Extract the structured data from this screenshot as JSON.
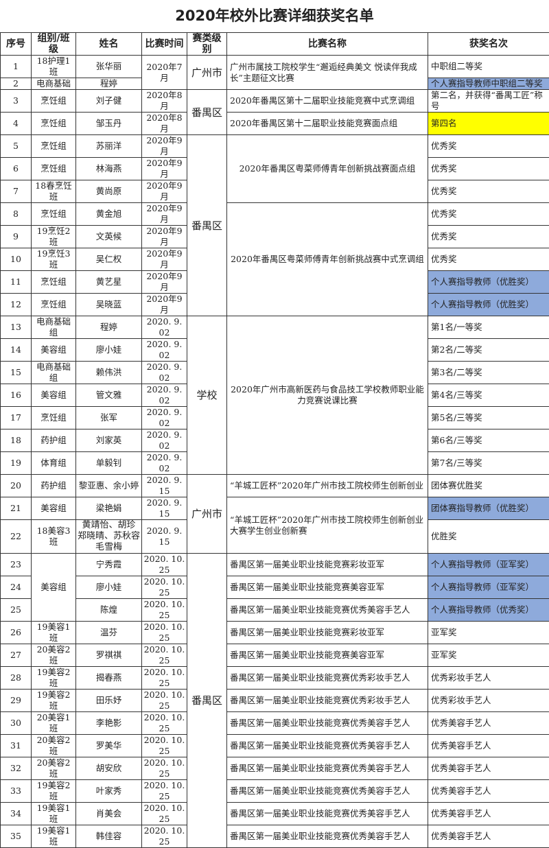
{
  "title": "2020年校外比赛详细获奖名单",
  "colors": {
    "highlight_blue": "#8eaadb",
    "highlight_yellow": "#ffff00"
  },
  "headers": [
    "序号",
    "组别/班级",
    "姓名",
    "比赛时间",
    "赛类级别",
    "比赛名称",
    "获奖名次"
  ],
  "rows": [
    {
      "no": "1",
      "group": "18护理1班",
      "name": "张华丽",
      "time": "2020年7月",
      "level": "广州市",
      "competition": "广州市属技工院校学生“邂逅经典美文 悦读伴我成长”主题征文比赛",
      "award": "中职组二等奖"
    },
    {
      "no": "2",
      "group": "电商基础",
      "name": "程婷",
      "time": "2020年7月",
      "level": "广州市",
      "competition": "广州市属技工院校学生“邂逅经典美文 悦读伴我成长”主题征文比赛",
      "award": "个人赛指导教师中职组二等奖",
      "highlight": "blue"
    },
    {
      "no": "3",
      "group": "烹饪组",
      "name": "刘子健",
      "time": "2020年8月",
      "level": "番禺区",
      "competition": "2020年番禺区第十二届职业技能竞赛中式烹调组",
      "award": "第二名，并获得“番禺工匠”称号"
    },
    {
      "no": "4",
      "group": "烹饪组",
      "name": "邹玉丹",
      "time": "2020年8月",
      "level": "番禺区",
      "competition": "2020年番禺区第十二届职业技能竞赛面点组",
      "award": "第四名",
      "highlight": "yellow"
    },
    {
      "no": "5",
      "group": "烹饪组",
      "name": "苏丽洋",
      "time": "2020年9月",
      "level": "番禺区",
      "competition": "2020年番禺区粤菜师傅青年创新挑战赛面点组",
      "award": "优秀奖"
    },
    {
      "no": "6",
      "group": "烹饪组",
      "name": "林海燕",
      "time": "2020年9月",
      "level": "番禺区",
      "competition": "2020年番禺区粤菜师傅青年创新挑战赛面点组",
      "award": "优秀奖"
    },
    {
      "no": "7",
      "group": "18春烹饪班",
      "name": "黄尚原",
      "time": "2020年9月",
      "level": "番禺区",
      "competition": "2020年番禺区粤菜师傅青年创新挑战赛面点组",
      "award": "优秀奖"
    },
    {
      "no": "8",
      "group": "烹饪组",
      "name": "黄金旭",
      "time": "2020年9月",
      "level": "番禺区",
      "competition": "2020年番禺区粤菜师傅青年创新挑战赛中式烹调组",
      "award": "优秀奖"
    },
    {
      "no": "9",
      "group": "19烹饪2班",
      "name": "文英候",
      "time": "2020年9月",
      "level": "番禺区",
      "competition": "2020年番禺区粤菜师傅青年创新挑战赛中式烹调组",
      "award": "优秀奖"
    },
    {
      "no": "10",
      "group": "19烹饪3班",
      "name": "吴仁权",
      "time": "2020年9月",
      "level": "番禺区",
      "competition": "2020年番禺区粤菜师傅青年创新挑战赛中式烹调组",
      "award": "优秀奖"
    },
    {
      "no": "11",
      "group": "烹饪组",
      "name": "黄艺星",
      "time": "2020年9月",
      "level": "番禺区",
      "competition": "2020年番禺区粤菜师傅青年创新挑战赛中式烹调组",
      "award": "个人赛指导教师（优胜奖）",
      "highlight": "blue"
    },
    {
      "no": "12",
      "group": "烹饪组",
      "name": "吴晓蓝",
      "time": "2020年9月",
      "level": "番禺区",
      "competition": "2020年番禺区粤菜师傅青年创新挑战赛中式烹调组",
      "award": "个人赛指导教师（优胜奖）",
      "highlight": "blue"
    },
    {
      "no": "13",
      "group": "电商基础组",
      "name": "程婷",
      "time": "2020. 9. 02",
      "level": "学校",
      "competition": "2020年广州市高新医药与食品技工学校教师职业能力竞赛说课比赛",
      "award": "第1名/一等奖"
    },
    {
      "no": "14",
      "group": "美容组",
      "name": "廖小娃",
      "time": "2020. 9. 02",
      "level": "学校",
      "competition": "2020年广州市高新医药与食品技工学校教师职业能力竞赛说课比赛",
      "award": "第2名/二等奖"
    },
    {
      "no": "15",
      "group": "电商基础组",
      "name": "赖伟洪",
      "time": "2020. 9. 02",
      "level": "学校",
      "competition": "2020年广州市高新医药与食品技工学校教师职业能力竞赛说课比赛",
      "award": "第3名/二等奖"
    },
    {
      "no": "16",
      "group": "美容组",
      "name": "管文雅",
      "time": "2020. 9. 02",
      "level": "学校",
      "competition": "2020年广州市高新医药与食品技工学校教师职业能力竞赛说课比赛",
      "award": "第4名/三等奖"
    },
    {
      "no": "17",
      "group": "烹饪组",
      "name": "张军",
      "time": "2020. 9. 02",
      "level": "学校",
      "competition": "2020年广州市高新医药与食品技工学校教师职业能力竞赛说课比赛",
      "award": "第5名/三等奖"
    },
    {
      "no": "18",
      "group": "药护组",
      "name": "刘家英",
      "time": "2020. 9. 02",
      "level": "学校",
      "competition": "2020年广州市高新医药与食品技工学校教师职业能力竞赛说课比赛",
      "award": "第6名/三等奖"
    },
    {
      "no": "19",
      "group": "体育组",
      "name": "单毅钊",
      "time": "2020. 9. 02",
      "level": "学校",
      "competition": "2020年广州市高新医药与食品技工学校教师职业能力竞赛说课比赛",
      "award": "第7名/三等奖"
    },
    {
      "no": "20",
      "group": "药护组",
      "name": "黎亚惠、余小婷",
      "time": "2020. 9. 15",
      "level": "广州市",
      "competition": "“羊城工匠杯”2020年广州市技工院校师生创新创业",
      "award": "团体赛优胜奖"
    },
    {
      "no": "21",
      "group": "美容组",
      "name": "梁艳娟",
      "time": "2020. 9. 15",
      "level": "广州市",
      "competition": "“羊城工匠杯”2020年广州市技工院校师生创新创业大赛学生创业创新赛",
      "award": "团体赛指导教师（优胜奖）",
      "highlight": "blue"
    },
    {
      "no": "22",
      "group": "18美容3班",
      "name": "黄靖怡、胡珍 郑晓晴、苏秋容 毛雪梅",
      "time": "2020. 9. 15",
      "level": "广州市",
      "competition": "“羊城工匠杯”2020年广州市技工院校师生创新创业大赛学生创业创新赛",
      "award": "优胜奖"
    },
    {
      "no": "23",
      "group": "美容组",
      "name": "宁秀霞",
      "time": "2020. 10. 25",
      "level": "番禺区",
      "competition": "番禺区第一届美业职业技能竞赛彩妆亚军",
      "award": "个人赛指导教师（亚军奖）",
      "highlight": "blue"
    },
    {
      "no": "24",
      "group": "美容组",
      "name": "廖小娃",
      "time": "2020. 10. 25",
      "level": "番禺区",
      "competition": "番禺区第一届美业职业技能竞赛美容亚军",
      "award": "个人赛指导教师（亚军奖）",
      "highlight": "blue"
    },
    {
      "no": "25",
      "group": "美容组",
      "name": "陈煌",
      "time": "2020. 10. 25",
      "level": "番禺区",
      "competition": "番禺区第一届美业职业技能竞赛优秀美容手艺人",
      "award": "个人赛指导教师（优秀奖）",
      "highlight": "blue"
    },
    {
      "no": "26",
      "group": "19美容1班",
      "name": "温芬",
      "time": "2020. 10. 25",
      "level": "番禺区",
      "competition": "番禺区第一届美业职业技能竞赛彩妆亚军",
      "award": "亚军奖"
    },
    {
      "no": "27",
      "group": "20美容2班",
      "name": "罗祺祺",
      "time": "2020. 10. 25",
      "level": "番禺区",
      "competition": "番禺区第一届美业职业技能竞赛美容亚军",
      "award": "亚军奖"
    },
    {
      "no": "28",
      "group": "19美容2班",
      "name": "揭春燕",
      "time": "2020. 10. 25",
      "level": "番禺区",
      "competition": "番禺区第一届美业职业技能竞赛优秀彩妆手艺人",
      "award": "优秀彩妆手艺人"
    },
    {
      "no": "29",
      "group": "19美容2班",
      "name": "田乐妤",
      "time": "2020. 10. 25",
      "level": "番禺区",
      "competition": "番禺区第一届美业职业技能竞赛优秀彩妆手艺人",
      "award": "优秀彩妆手艺人"
    },
    {
      "no": "30",
      "group": "20美容1班",
      "name": "李艳影",
      "time": "2020. 10. 25",
      "level": "番禺区",
      "competition": "番禺区第一届美业职业技能竞赛优秀美容手艺人",
      "award": "优秀美容手艺人"
    },
    {
      "no": "31",
      "group": "20美容2班",
      "name": "罗美华",
      "time": "2020. 10. 25",
      "level": "番禺区",
      "competition": "番禺区第一届美业职业技能竞赛优秀美容手艺人",
      "award": "优秀美容手艺人"
    },
    {
      "no": "32",
      "group": "20美容2班",
      "name": "胡安欣",
      "time": "2020. 10. 25",
      "level": "番禺区",
      "competition": "番禺区第一届美业职业技能竞赛优秀美容手艺人",
      "award": "优秀美容手艺人"
    },
    {
      "no": "33",
      "group": "19美容2班",
      "name": "叶家秀",
      "time": "2020. 10. 25",
      "level": "番禺区",
      "competition": "番禺区第一届美业职业技能竞赛优秀美容手艺人",
      "award": "优秀美容手艺人"
    },
    {
      "no": "34",
      "group": "19美容1班",
      "name": "肖美会",
      "time": "2020. 10. 25",
      "level": "番禺区",
      "competition": "番禺区第一届美业职业技能竞赛优秀美容手艺人",
      "award": "优秀美容手艺人"
    },
    {
      "no": "35",
      "group": "19美容1班",
      "name": "韩佳容",
      "time": "2020. 10. 25",
      "level": "番禺区",
      "competition": "番禺区第一届美业职业技能竞赛优秀美容手艺人",
      "award": "优秀美容手艺人"
    }
  ]
}
